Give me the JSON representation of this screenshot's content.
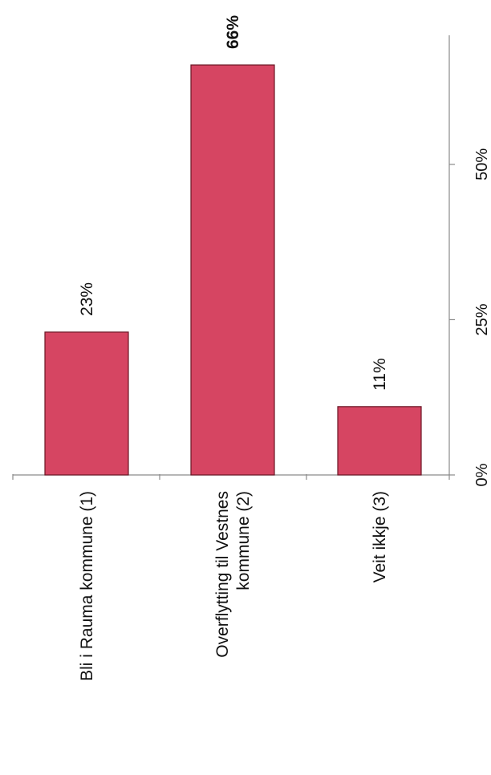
{
  "colors": {
    "bar": "#d64562",
    "bar_edge": "#6a1424",
    "axis": "#8a8a8a"
  },
  "chart_data": {
    "type": "bar",
    "orientation": "rotated",
    "categories": [
      [
        "Bli i Rauma kommune (1)"
      ],
      [
        "Overflytting til Vestnes",
        "kommune (2)"
      ],
      [
        "Veit ikkje (3)"
      ]
    ],
    "values": [
      23,
      66,
      11
    ],
    "value_labels": [
      "23%",
      "66%",
      "11%"
    ],
    "ylim": [
      0,
      66
    ],
    "yticks": [
      0,
      25,
      50
    ],
    "ytick_labels": [
      "0%",
      "25%",
      "50%"
    ],
    "grid": false,
    "legend": "none"
  }
}
